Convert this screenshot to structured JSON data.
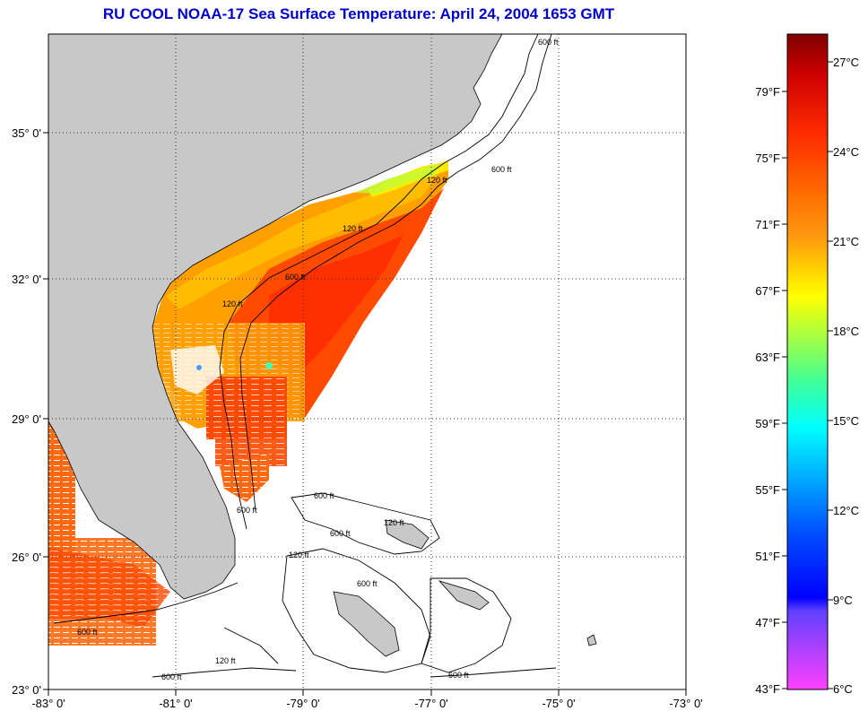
{
  "title": "RU COOL  NOAA-17  Sea Surface Temperature:  April 24, 2004 1653 GMT",
  "map": {
    "lon_labels": [
      "-83° 0'",
      "-81° 0'",
      "-79° 0'",
      "-77° 0'",
      "-75° 0'",
      "-73° 0'"
    ],
    "lat_labels": [
      "35° 0'",
      "32° 0'",
      "29° 0'",
      "26° 0'",
      "23° 0'"
    ],
    "contour_labels": [
      "600 ft",
      "120 ft",
      "600 ft",
      "120 ft",
      "600 ft",
      "120 ft",
      "600 ft",
      "600 ft",
      "120 ft",
      "600 ft",
      "120 ft",
      "600 ft",
      "120 ft",
      "600 ft",
      "600 ft",
      "600 ft"
    ],
    "land_color": "#c8c8c8",
    "no_data_color": "#ffffff"
  },
  "colorbar": {
    "fahrenheit_labels": [
      "79°F",
      "75°F",
      "71°F",
      "67°F",
      "63°F",
      "59°F",
      "55°F",
      "51°F",
      "47°F",
      "43°F"
    ],
    "celsius_labels": [
      "27°C",
      "24°C",
      "21°C",
      "18°C",
      "15°C",
      "12°C",
      "9°C",
      "6°C"
    ],
    "gradient_colors": [
      "#800000",
      "#cc0000",
      "#ff2a00",
      "#ff6a00",
      "#ff9a10",
      "#ffd200",
      "#ffff00",
      "#a8ff40",
      "#40ff98",
      "#00ffff",
      "#00a8ff",
      "#0050ff",
      "#0000ff",
      "#6040ff",
      "#b040ff",
      "#ff40ff"
    ]
  }
}
